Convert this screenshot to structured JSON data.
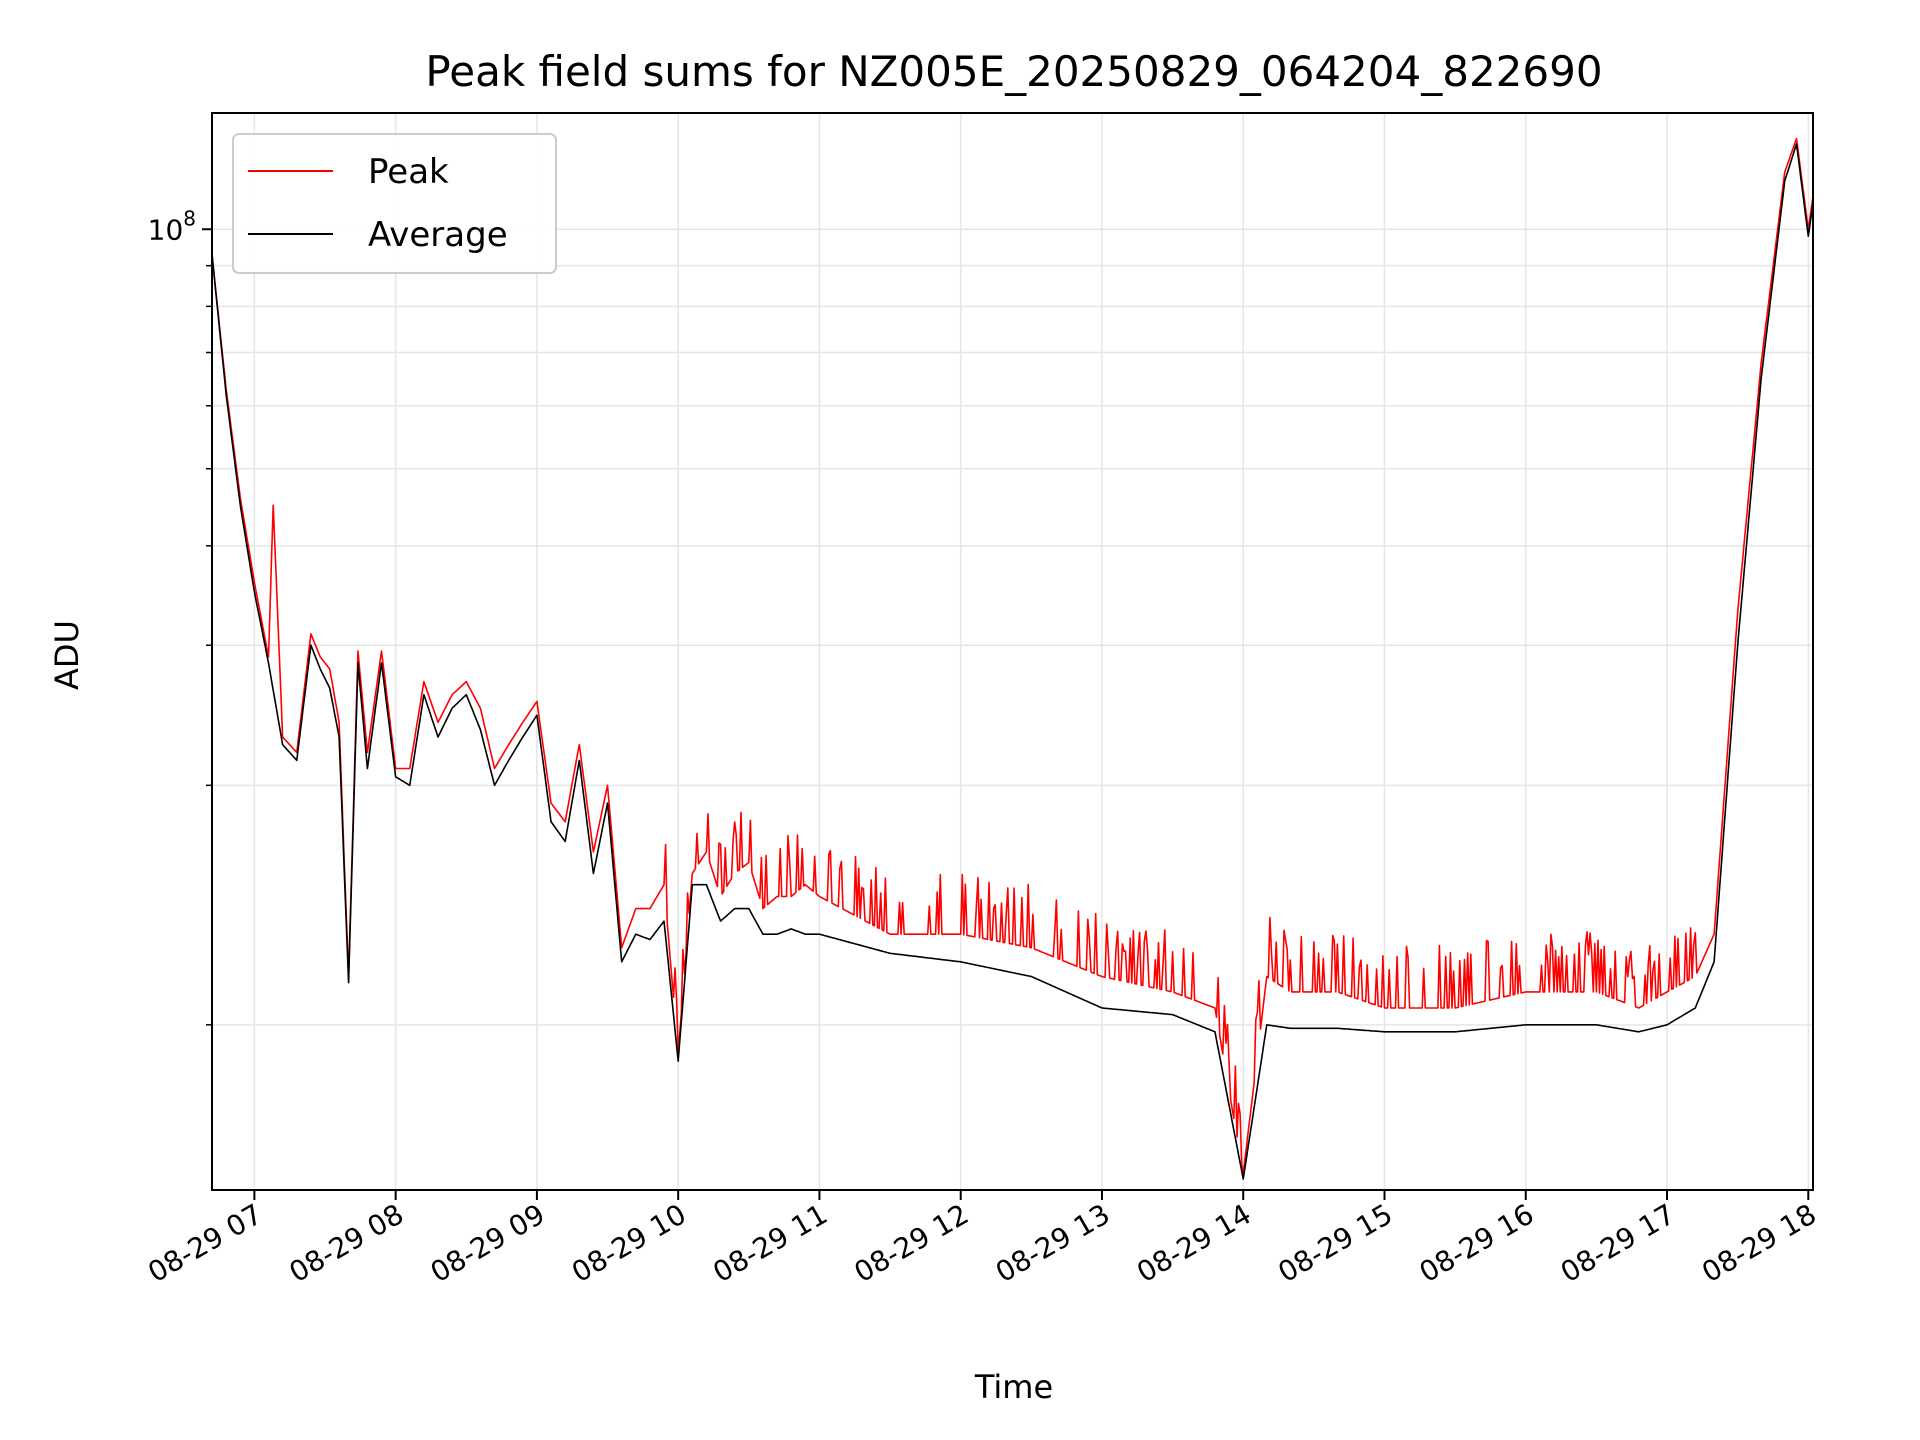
{
  "chart_data": {
    "type": "line",
    "title": "Peak field sums for NZ005E_20250829_064204_822690",
    "xlabel": "Time",
    "ylabel": "ADU",
    "yscale": "log",
    "grid": true,
    "legend_placement": "top-left",
    "x_start": "08-29 06:42",
    "x_end": "08-29 18:02",
    "xlim": [
      "08-29 06:42",
      "08-29 18:02"
    ],
    "ylim": [
      6200000,
      140000000
    ],
    "x_ticks": [
      "08-29 07",
      "08-29 08",
      "08-29 09",
      "08-29 10",
      "08-29 11",
      "08-29 12",
      "08-29 13",
      "08-29 14",
      "08-29 15",
      "08-29 16",
      "08-29 17",
      "08-29 18"
    ],
    "x_tick_times": [
      "08-29 07:00",
      "08-29 08:00",
      "08-29 09:00",
      "08-29 10:00",
      "08-29 11:00",
      "08-29 12:00",
      "08-29 13:00",
      "08-29 14:00",
      "08-29 15:00",
      "08-29 16:00",
      "08-29 17:00",
      "08-29 18:00"
    ],
    "y_ticks": [
      {
        "value": 100000000,
        "base": "10",
        "exponent": "8"
      }
    ],
    "y_minor_ticks": [
      10000000,
      20000000,
      30000000,
      40000000,
      50000000,
      60000000,
      70000000,
      80000000,
      90000000
    ],
    "series": [
      {
        "name": "Peak",
        "color": "#ff0000",
        "spiky": true,
        "x": [
          "08-29 06:42",
          "08-29 06:48",
          "08-29 06:54",
          "08-29 07:00",
          "08-29 07:06",
          "08-29 07:08",
          "08-29 07:12",
          "08-29 07:18",
          "08-29 07:24",
          "08-29 07:28",
          "08-29 07:32",
          "08-29 07:36",
          "08-29 07:40",
          "08-29 07:44",
          "08-29 07:48",
          "08-29 07:54",
          "08-29 08:00",
          "08-29 08:06",
          "08-29 08:12",
          "08-29 08:18",
          "08-29 08:24",
          "08-29 08:30",
          "08-29 08:36",
          "08-29 08:42",
          "08-29 08:48",
          "08-29 08:54",
          "08-29 09:00",
          "08-29 09:06",
          "08-29 09:12",
          "08-29 09:18",
          "08-29 09:24",
          "08-29 09:30",
          "08-29 09:36",
          "08-29 09:42",
          "08-29 09:48",
          "08-29 09:54",
          "08-29 10:00",
          "08-29 10:06",
          "08-29 10:12",
          "08-29 10:18",
          "08-29 10:24",
          "08-29 10:30",
          "08-29 10:36",
          "08-29 10:42",
          "08-29 10:48",
          "08-29 10:54",
          "08-29 11:00",
          "08-29 11:30",
          "08-29 12:00",
          "08-29 12:30",
          "08-29 13:00",
          "08-29 13:30",
          "08-29 13:48",
          "08-29 14:00",
          "08-29 14:10",
          "08-29 14:20",
          "08-29 14:40",
          "08-29 15:00",
          "08-29 15:30",
          "08-29 16:00",
          "08-29 16:30",
          "08-29 16:48",
          "08-29 17:00",
          "08-29 17:12",
          "08-29 17:20",
          "08-29 17:30",
          "08-29 17:40",
          "08-29 17:50",
          "08-29 17:55",
          "08-29 18:00",
          "08-29 18:02"
        ],
        "values": [
          93000000,
          63000000,
          46000000,
          36000000,
          29000000,
          45000000,
          23000000,
          22000000,
          31000000,
          29000000,
          28000000,
          24000000,
          11500000,
          29500000,
          22000000,
          29500000,
          21000000,
          21000000,
          27000000,
          24000000,
          26000000,
          27000000,
          25000000,
          21000000,
          22500000,
          24000000,
          25500000,
          19000000,
          18000000,
          22500000,
          16500000,
          20000000,
          12500000,
          14000000,
          14000000,
          15000000,
          9200000,
          15500000,
          16500000,
          14500000,
          15500000,
          16000000,
          14000000,
          14500000,
          14500000,
          15000000,
          14500000,
          13000000,
          13000000,
          12500000,
          11500000,
          11000000,
          10500000,
          6500000,
          11500000,
          11000000,
          11000000,
          10500000,
          10500000,
          11000000,
          11000000,
          10500000,
          11000000,
          11500000,
          13000000,
          33000000,
          68000000,
          118000000,
          130000000,
          100000000,
          110000000
        ]
      },
      {
        "name": "Average",
        "color": "#000000",
        "spiky": false,
        "x": [
          "08-29 06:42",
          "08-29 06:48",
          "08-29 06:54",
          "08-29 07:00",
          "08-29 07:06",
          "08-29 07:12",
          "08-29 07:18",
          "08-29 07:24",
          "08-29 07:28",
          "08-29 07:32",
          "08-29 07:36",
          "08-29 07:40",
          "08-29 07:44",
          "08-29 07:48",
          "08-29 07:54",
          "08-29 08:00",
          "08-29 08:06",
          "08-29 08:12",
          "08-29 08:18",
          "08-29 08:24",
          "08-29 08:30",
          "08-29 08:36",
          "08-29 08:42",
          "08-29 08:48",
          "08-29 08:54",
          "08-29 09:00",
          "08-29 09:06",
          "08-29 09:12",
          "08-29 09:18",
          "08-29 09:24",
          "08-29 09:30",
          "08-29 09:36",
          "08-29 09:42",
          "08-29 09:48",
          "08-29 09:54",
          "08-29 10:00",
          "08-29 10:06",
          "08-29 10:12",
          "08-29 10:18",
          "08-29 10:24",
          "08-29 10:30",
          "08-29 10:36",
          "08-29 10:42",
          "08-29 10:48",
          "08-29 10:54",
          "08-29 11:00",
          "08-29 11:30",
          "08-29 12:00",
          "08-29 12:30",
          "08-29 13:00",
          "08-29 13:30",
          "08-29 13:48",
          "08-29 14:00",
          "08-29 14:10",
          "08-29 14:20",
          "08-29 14:40",
          "08-29 15:00",
          "08-29 15:30",
          "08-29 16:00",
          "08-29 16:30",
          "08-29 16:48",
          "08-29 17:00",
          "08-29 17:12",
          "08-29 17:20",
          "08-29 17:30",
          "08-29 17:40",
          "08-29 17:50",
          "08-29 17:55",
          "08-29 18:00",
          "08-29 18:02"
        ],
        "values": [
          93000000,
          62000000,
          45000000,
          35000000,
          28500000,
          22500000,
          21500000,
          30000000,
          28000000,
          26500000,
          23000000,
          11300000,
          28500000,
          21000000,
          28500000,
          20500000,
          20000000,
          26000000,
          23000000,
          25000000,
          26000000,
          23500000,
          20000000,
          21500000,
          23000000,
          24500000,
          18000000,
          17000000,
          21500000,
          15500000,
          19000000,
          12000000,
          13000000,
          12800000,
          13500000,
          9000000,
          15000000,
          15000000,
          13500000,
          14000000,
          14000000,
          13000000,
          13000000,
          13200000,
          13000000,
          13000000,
          12300000,
          12000000,
          11500000,
          10500000,
          10300000,
          9800000,
          6400000,
          10000000,
          9900000,
          9900000,
          9800000,
          9800000,
          10000000,
          10000000,
          9800000,
          10000000,
          10500000,
          12000000,
          30000000,
          65000000,
          115000000,
          128000000,
          98000000,
          108000000
        ]
      }
    ]
  }
}
